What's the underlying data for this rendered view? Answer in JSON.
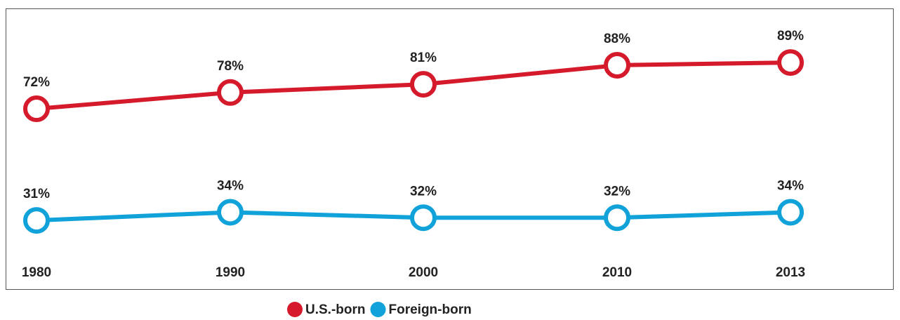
{
  "chart_data": {
    "type": "line",
    "categories": [
      "1980",
      "1990",
      "2000",
      "2010",
      "2013"
    ],
    "series": [
      {
        "name": "U.S.-born",
        "color": "#d51b2b",
        "values": [
          72,
          78,
          81,
          88,
          89
        ],
        "value_labels": [
          "72%",
          "78%",
          "81%",
          "88%",
          "89%"
        ]
      },
      {
        "name": "Foreign-born",
        "color": "#10a2d9",
        "values": [
          31,
          34,
          32,
          32,
          34
        ],
        "value_labels": [
          "31%",
          "34%",
          "32%",
          "32%",
          "34%"
        ]
      }
    ]
  }
}
